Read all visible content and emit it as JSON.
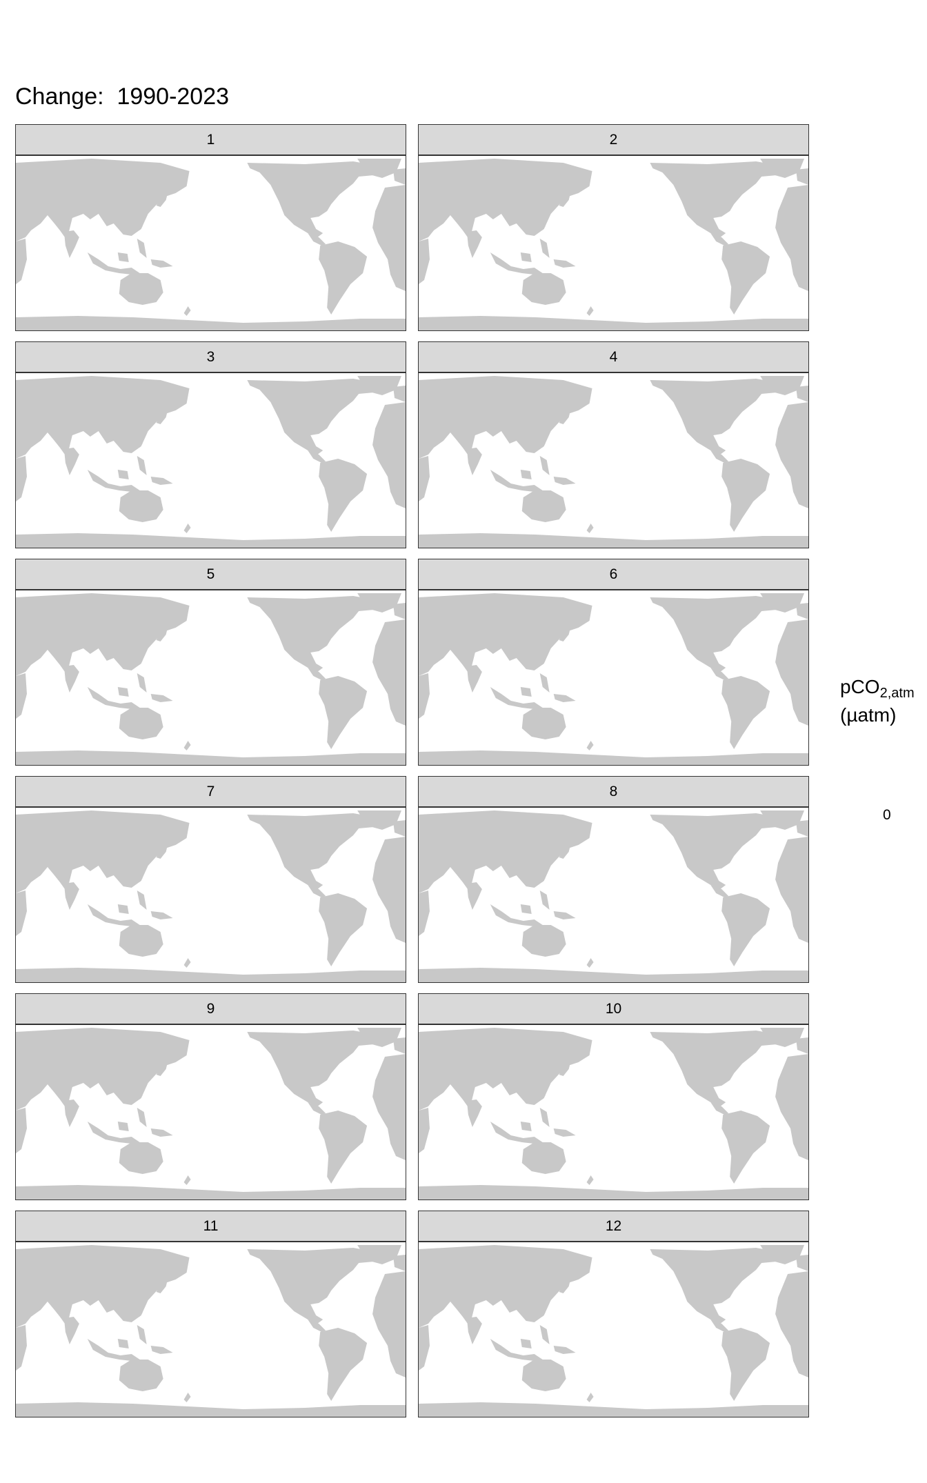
{
  "title": "Change:  1990-2023",
  "panels": [
    "1",
    "2",
    "3",
    "4",
    "5",
    "6",
    "7",
    "8",
    "9",
    "10",
    "11",
    "12"
  ],
  "legend": {
    "title_main": "pCO",
    "title_sub": "2,atm",
    "units": "(µatm)",
    "tick": "0"
  },
  "colors": {
    "land": "#c8c8c8",
    "ocean": "#ffffff",
    "strip": "#d9d9d9",
    "border": "#333333"
  },
  "map": {
    "projection": "equirectangular, Pacific-centered",
    "features": [
      "land"
    ]
  }
}
